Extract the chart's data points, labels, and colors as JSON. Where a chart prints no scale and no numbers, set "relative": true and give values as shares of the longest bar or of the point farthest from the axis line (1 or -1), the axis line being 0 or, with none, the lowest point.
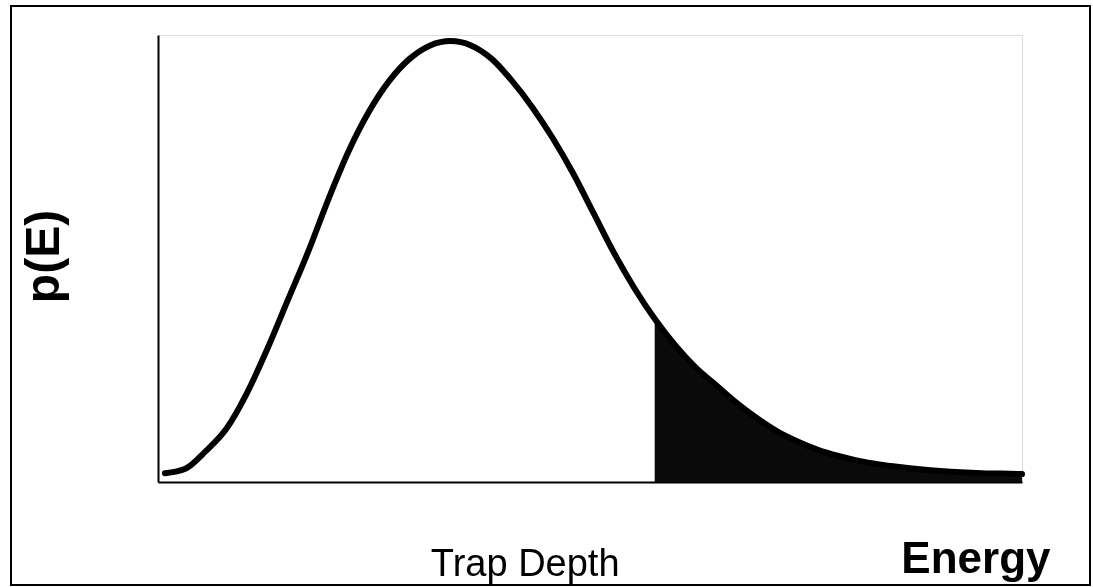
{
  "chart_data": {
    "type": "line",
    "relative": true,
    "ylabel": "p(E)",
    "xlabel": "Energy",
    "annotations": [
      "Trap Depth"
    ],
    "categories": [
      null,
      null,
      null,
      null,
      null,
      null,
      null,
      null,
      null,
      null,
      null,
      null,
      null,
      null,
      null,
      null,
      null,
      null,
      null,
      null,
      null,
      null,
      null,
      null,
      null,
      null,
      null,
      null,
      null,
      null,
      null,
      null,
      null,
      null,
      null,
      null,
      null,
      null,
      null,
      null,
      null,
      null,
      null
    ],
    "series": [
      {
        "color": "#000000",
        "values": [
          0.02,
          0.03,
          0.07,
          0.12,
          0.2,
          0.3,
          0.41,
          0.52,
          0.64,
          0.75,
          0.84,
          0.91,
          0.96,
          0.99,
          1.0,
          0.99,
          0.96,
          0.91,
          0.85,
          0.78,
          0.7,
          0.61,
          0.52,
          0.44,
          0.37,
          0.31,
          0.26,
          0.22,
          0.18,
          0.145,
          0.115,
          0.092,
          0.073,
          0.059,
          0.048,
          0.04,
          0.034,
          0.029,
          0.025,
          0.022,
          0.02,
          0.019,
          0.018
        ]
      },
      {
        "type": "area",
        "color": "#0a0a0a",
        "values": [
          null,
          null,
          null,
          null,
          null,
          null,
          null,
          null,
          null,
          null,
          null,
          null,
          null,
          null,
          null,
          null,
          null,
          null,
          null,
          null,
          null,
          null,
          null,
          null,
          0.37,
          0.31,
          0.26,
          0.22,
          0.18,
          0.145,
          0.115,
          0.092,
          0.073,
          0.059,
          0.048,
          0.04,
          0.034,
          0.029,
          0.025,
          0.022,
          0.02,
          0.019,
          0.018
        ]
      }
    ]
  }
}
